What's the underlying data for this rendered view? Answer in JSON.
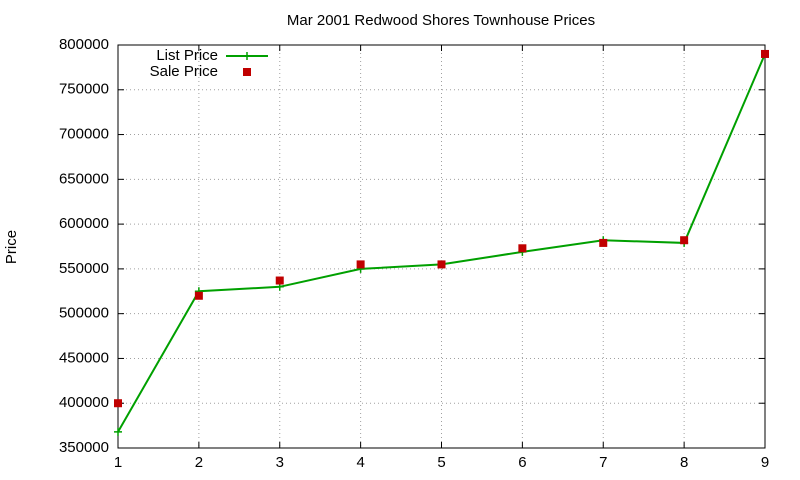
{
  "chart_data": {
    "type": "line",
    "title": "Mar 2001 Redwood Shores Townhouse Prices",
    "y_label": "Price",
    "x": [
      1,
      2,
      3,
      4,
      5,
      6,
      7,
      8,
      9
    ],
    "series": [
      {
        "name": "List Price",
        "color": "#00a000",
        "style": "linespoints",
        "values": [
          368000,
          525000,
          530000,
          550000,
          555000,
          569000,
          582000,
          579000,
          790000
        ]
      },
      {
        "name": "Sale Price",
        "color": "#c00000",
        "style": "points",
        "values": [
          400000,
          520000,
          537000,
          555000,
          555000,
          573000,
          579000,
          582000,
          790000
        ]
      }
    ],
    "xlim": [
      1,
      9
    ],
    "xticks": [
      1,
      2,
      3,
      4,
      5,
      6,
      7,
      8,
      9
    ],
    "ylim": [
      350000,
      800000
    ],
    "yticks": [
      350000,
      400000,
      450000,
      500000,
      550000,
      600000,
      650000,
      700000,
      750000,
      800000
    ],
    "grid": true,
    "legend": "top-left"
  }
}
